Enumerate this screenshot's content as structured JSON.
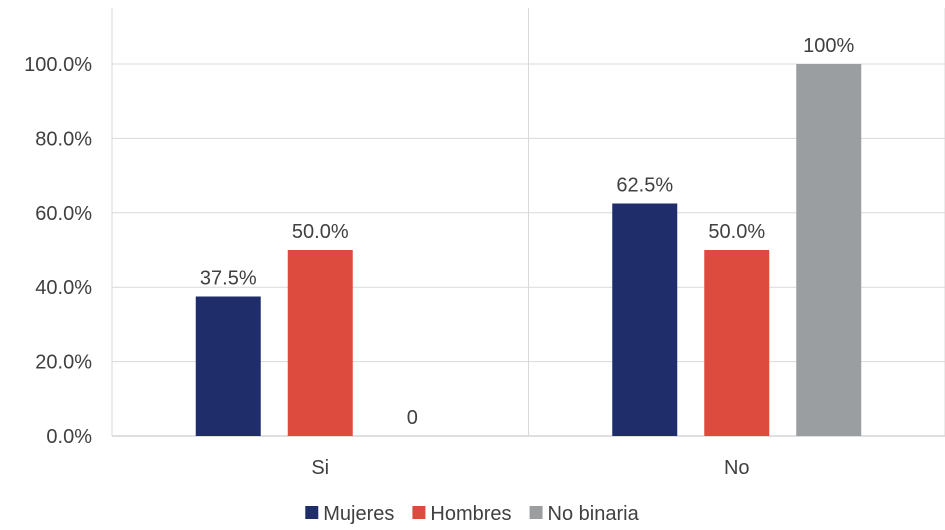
{
  "chart_data": {
    "type": "bar",
    "categories": [
      "Si",
      "No"
    ],
    "series": [
      {
        "name": "Mujeres",
        "values": [
          37.5,
          62.5
        ],
        "labels": [
          "37.5%",
          "62.5%"
        ],
        "color": "#1f2d6b"
      },
      {
        "name": "Hombres",
        "values": [
          50.0,
          50.0
        ],
        "labels": [
          "50.0%",
          "50.0%"
        ],
        "color": "#dd4b3e"
      },
      {
        "name": "No binaria",
        "values": [
          0,
          100
        ],
        "labels": [
          "0",
          "100%"
        ],
        "color": "#9a9ea1"
      }
    ],
    "yticks": [
      "0.0%",
      "20.0%",
      "40.0%",
      "60.0%",
      "80.0%",
      "100.0%"
    ],
    "ylim": [
      0,
      100
    ],
    "grid": true,
    "legend": "bottom-center"
  }
}
